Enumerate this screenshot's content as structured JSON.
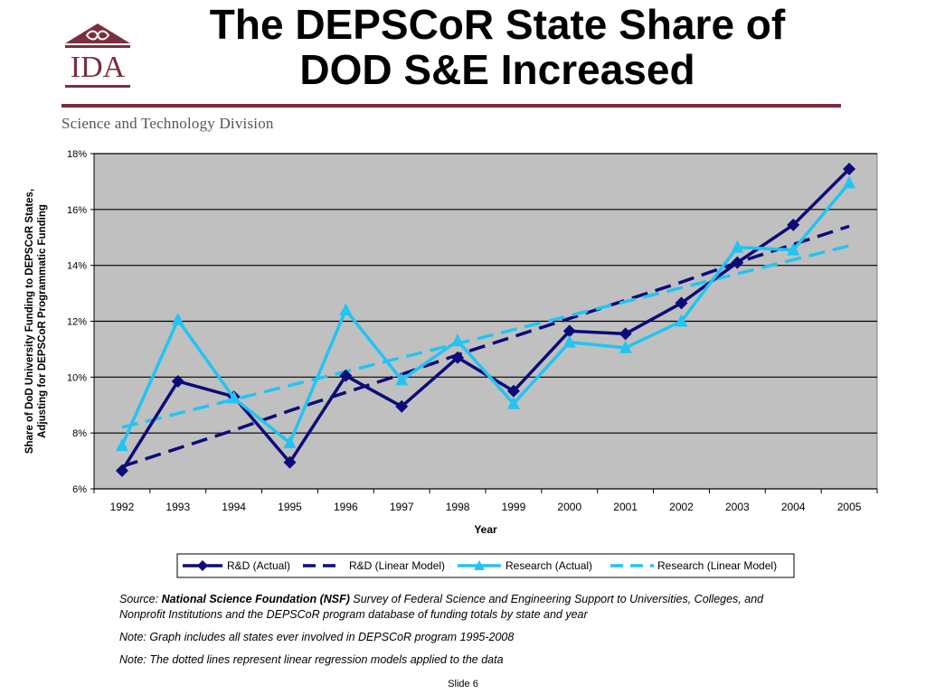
{
  "header": {
    "title_line1": "The DEPSCoR State Share of",
    "title_line2": "DOD S&E Increased",
    "logo_text": "IDA",
    "division": "Science and Technology Division"
  },
  "colors": {
    "brand": "#7a2e3e",
    "plot_background": "#c0c0c0",
    "rd_color": "#0b0b7a",
    "research_color": "#22c4f2"
  },
  "chart_data": {
    "type": "line",
    "xlabel": "Year",
    "ylabel_line1": "Share of DoD University Funding to DEPSCoR States,",
    "ylabel_line2": "Adjusting for DEPSCoR Programmatic Funding",
    "x": [
      1992,
      1993,
      1994,
      1995,
      1996,
      1997,
      1998,
      1999,
      2000,
      2001,
      2002,
      2003,
      2004,
      2005
    ],
    "ylim": [
      6,
      18
    ],
    "yticks": [
      6,
      8,
      10,
      12,
      14,
      16,
      18
    ],
    "ytick_labels": [
      "6%",
      "8%",
      "10%",
      "12%",
      "14%",
      "16%",
      "18%"
    ],
    "grid": true,
    "legend_position": "bottom",
    "series": [
      {
        "name": "R&D (Actual)",
        "style": "solid-diamond",
        "color": "#0b0b7a",
        "values": [
          6.65,
          9.85,
          9.3,
          6.95,
          10.05,
          8.95,
          10.7,
          9.5,
          11.65,
          11.55,
          12.65,
          14.1,
          15.45,
          17.45
        ]
      },
      {
        "name": "R&D (Linear Model)",
        "style": "dashed",
        "color": "#0b0b7a",
        "values": [
          6.8,
          7.45,
          8.1,
          8.8,
          9.45,
          10.1,
          10.8,
          11.45,
          12.1,
          12.75,
          13.4,
          14.1,
          14.75,
          15.4
        ]
      },
      {
        "name": "Research (Actual)",
        "style": "solid-triangle",
        "color": "#22c4f2",
        "values": [
          7.55,
          12.05,
          9.25,
          7.65,
          12.4,
          9.9,
          11.3,
          9.05,
          11.25,
          11.05,
          12.0,
          14.65,
          14.55,
          16.95
        ]
      },
      {
        "name": "Research (Linear Model)",
        "style": "dashed",
        "color": "#22c4f2",
        "values": [
          8.2,
          8.7,
          9.2,
          9.7,
          10.2,
          10.7,
          11.2,
          11.7,
          12.2,
          12.7,
          13.2,
          13.7,
          14.2,
          14.7
        ]
      }
    ]
  },
  "notes": {
    "source_prefix": "Source: ",
    "source_org": "National Science Foundation (NSF)",
    "source_text": " Survey of Federal Science and Engineering Support to Universities, Colleges, and Nonprofit Institutions and the DEPSCoR program database of funding totals by state and year",
    "note1": "Note: Graph includes all states ever involved in DEPSCoR program 1995-2008",
    "note2": "Note: The dotted lines represent linear regression models applied to the data"
  },
  "footer": {
    "slide": "Slide 6"
  }
}
